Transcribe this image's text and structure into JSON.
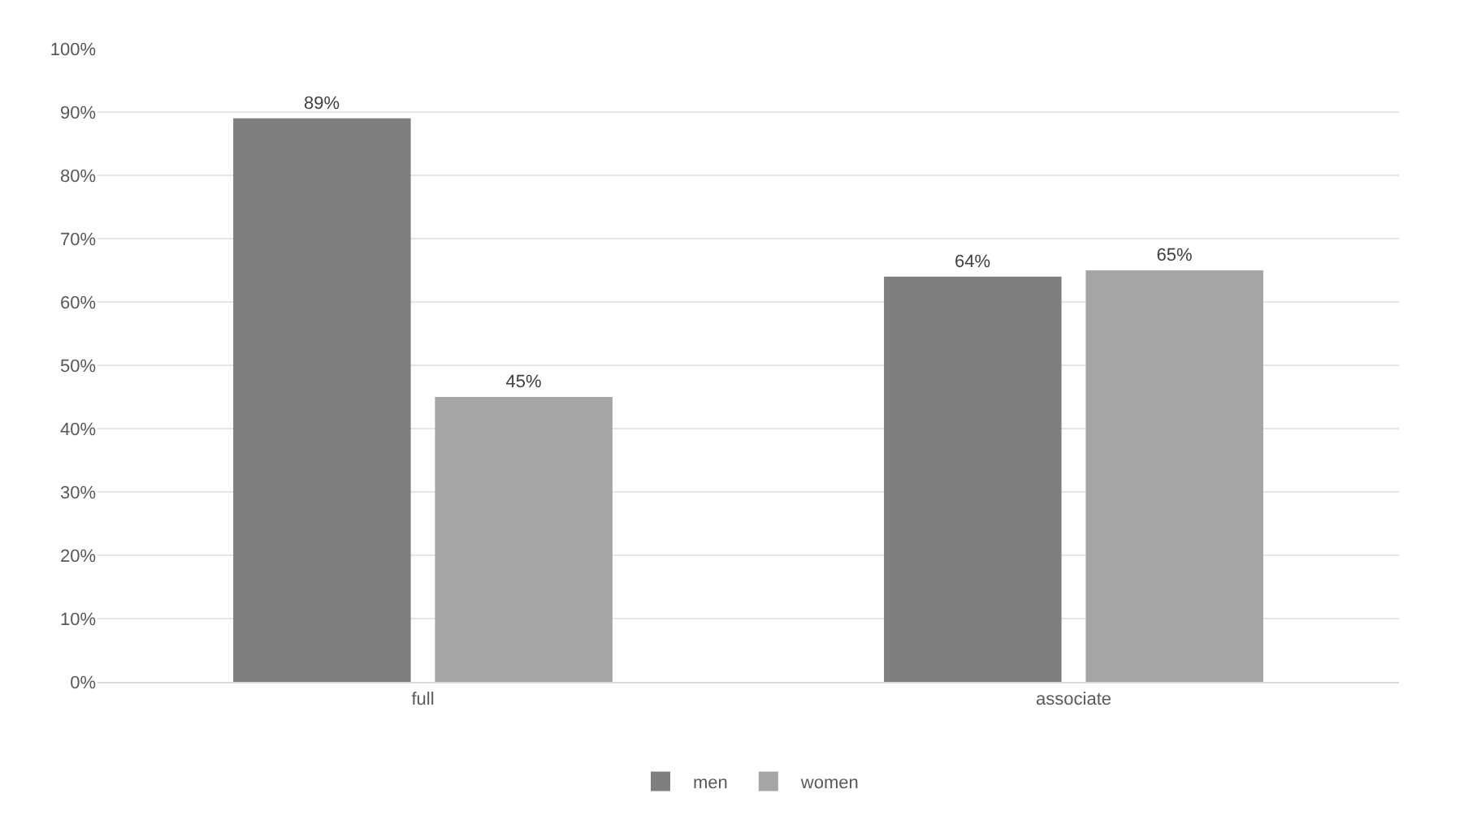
{
  "chart_data": {
    "type": "bar",
    "categories": [
      "full",
      "associate"
    ],
    "series": [
      {
        "name": "men",
        "color": "#7f7f7f",
        "values": [
          89,
          64
        ]
      },
      {
        "name": "women",
        "color": "#a5a5a5",
        "values": [
          45,
          65
        ]
      }
    ],
    "value_labels": [
      [
        "89%",
        "64%"
      ],
      [
        "45%",
        "65%"
      ]
    ],
    "ylim": [
      0,
      100
    ],
    "yticks": [
      {
        "value": 0,
        "label": "0%"
      },
      {
        "value": 10,
        "label": "10%"
      },
      {
        "value": 20,
        "label": "20%"
      },
      {
        "value": 30,
        "label": "30%"
      },
      {
        "value": 40,
        "label": "40%"
      },
      {
        "value": 50,
        "label": "50%"
      },
      {
        "value": 60,
        "label": "60%"
      },
      {
        "value": 70,
        "label": "70%"
      },
      {
        "value": 80,
        "label": "80%"
      },
      {
        "value": 90,
        "label": "90%"
      },
      {
        "value": 100,
        "label": "100%"
      }
    ],
    "grid": "y",
    "legend": "bottom"
  }
}
